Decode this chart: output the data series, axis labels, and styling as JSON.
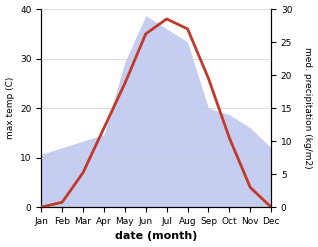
{
  "months": [
    "Jan",
    "Feb",
    "Mar",
    "Apr",
    "May",
    "Jun",
    "Jul",
    "Aug",
    "Sep",
    "Oct",
    "Nov",
    "Dec"
  ],
  "temperature": [
    0,
    1,
    7,
    16,
    25,
    35,
    38,
    36,
    26,
    14,
    4,
    0
  ],
  "precipitation": [
    8,
    9,
    10,
    11,
    22,
    29,
    27,
    25,
    15,
    14,
    12,
    9
  ],
  "temp_color": "#c0392b",
  "precip_fill_color": "#c5cef0",
  "xlabel": "date (month)",
  "ylabel_left": "max temp (C)",
  "ylabel_right": "med. precipitation (kg/m2)",
  "ylim_left": [
    0,
    40
  ],
  "ylim_right": [
    0,
    30
  ],
  "yticks_left": [
    0,
    10,
    20,
    30,
    40
  ],
  "yticks_right": [
    0,
    5,
    10,
    15,
    20,
    25,
    30
  ],
  "background_color": "#ffffff"
}
